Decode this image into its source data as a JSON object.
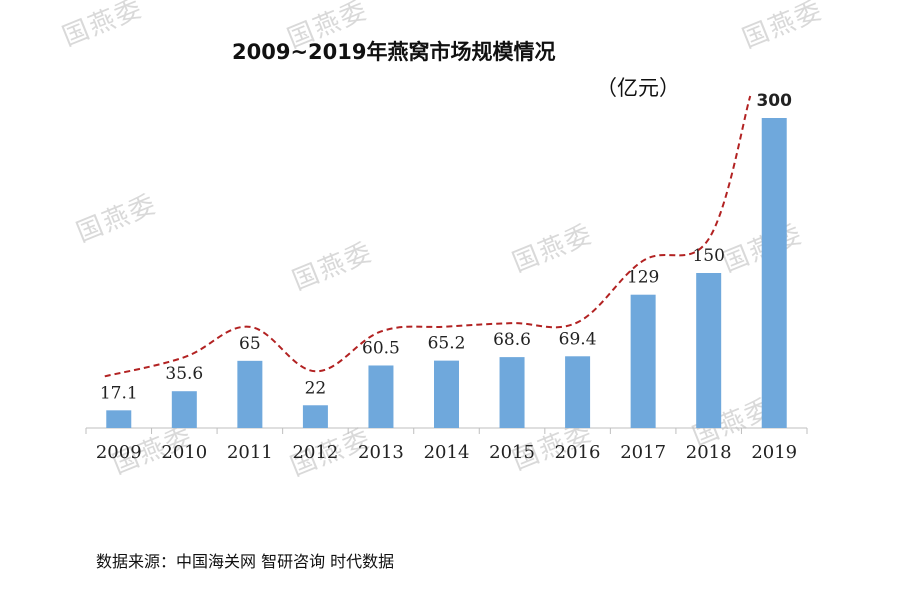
{
  "title": "2009~2019年燕窝市场规模情况",
  "unit_label": "（亿元）",
  "source": "数据来源：中国海关网 智研咨询 时代数据",
  "watermark_text": "国燕委",
  "colors": {
    "bar": "#6fa8dc",
    "trend": "#b22222",
    "axis": "#bfbfbf"
  },
  "chart_data": {
    "type": "bar",
    "categories": [
      "2009",
      "2010",
      "2011",
      "2012",
      "2013",
      "2014",
      "2015",
      "2016",
      "2017",
      "2018",
      "2019"
    ],
    "values": [
      17.1,
      35.6,
      65,
      22,
      60.5,
      65.2,
      68.6,
      69.4,
      129,
      150,
      300
    ],
    "data_labels": [
      "17.1",
      "35.6",
      "65",
      "22",
      "60.5",
      "65.2",
      "68.6",
      "69.4",
      "129",
      "150",
      "300"
    ],
    "title": "2009~2019年燕窝市场规模情况",
    "ylabel": "（亿元）",
    "xlabel": "",
    "ylim": [
      0,
      300
    ],
    "grid": false,
    "legend": "none",
    "trend_line": "dashed"
  }
}
